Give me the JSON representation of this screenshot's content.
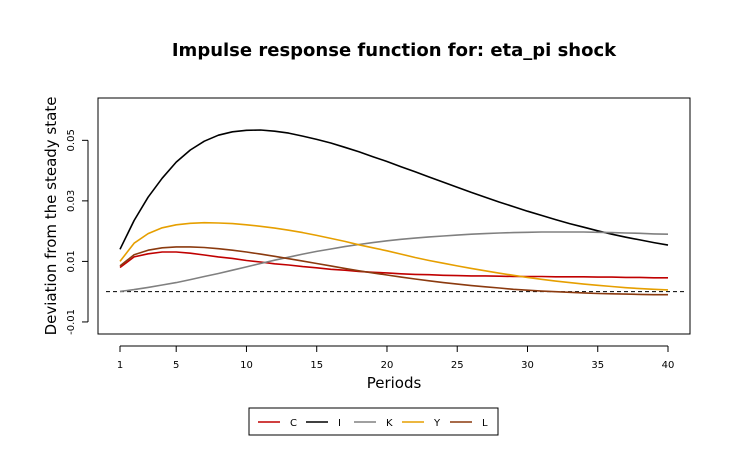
{
  "chart_data": {
    "type": "line",
    "title": "Impulse response function for: eta_pi shock",
    "xlabel": "Periods",
    "ylabel": "Deviation from the steady state",
    "xlim": [
      1,
      40
    ],
    "ylim": [
      -0.012,
      0.062
    ],
    "x_ticks": [
      1,
      5,
      10,
      15,
      20,
      25,
      30,
      35,
      40
    ],
    "y_ticks": [
      -0.01,
      0.01,
      0.03,
      0.05
    ],
    "y_tick_labels": [
      "-0.01",
      "0.01",
      "0.03",
      "0.05"
    ],
    "reference_line": {
      "y": 0,
      "style": "dashed"
    },
    "grid": false,
    "legend_position": "bottom",
    "x": [
      1,
      2,
      3,
      4,
      5,
      6,
      7,
      8,
      9,
      10,
      11,
      12,
      13,
      14,
      15,
      16,
      17,
      18,
      19,
      20,
      21,
      22,
      23,
      24,
      25,
      26,
      27,
      28,
      29,
      30,
      31,
      32,
      33,
      34,
      35,
      36,
      37,
      38,
      39,
      40
    ],
    "series": [
      {
        "name": "C",
        "color": "#C00000",
        "values": [
          0.008,
          0.0115,
          0.0125,
          0.0131,
          0.0131,
          0.0127,
          0.0121,
          0.0115,
          0.011,
          0.0103,
          0.0098,
          0.0092,
          0.0088,
          0.0083,
          0.0079,
          0.0074,
          0.0071,
          0.0067,
          0.0064,
          0.0062,
          0.0059,
          0.0057,
          0.0056,
          0.0054,
          0.0053,
          0.0052,
          0.0052,
          0.0051,
          0.005,
          0.005,
          0.005,
          0.0049,
          0.0049,
          0.0049,
          0.0048,
          0.0048,
          0.0047,
          0.0047,
          0.0046,
          0.0046
        ]
      },
      {
        "name": "I",
        "color": "#000000",
        "values": [
          0.014,
          0.0235,
          0.0312,
          0.0375,
          0.0428,
          0.0468,
          0.0497,
          0.0517,
          0.0528,
          0.0533,
          0.0534,
          0.053,
          0.0524,
          0.0514,
          0.0503,
          0.0491,
          0.0477,
          0.0462,
          0.0446,
          0.043,
          0.0413,
          0.0396,
          0.0379,
          0.0362,
          0.0345,
          0.0328,
          0.0312,
          0.0296,
          0.0281,
          0.0266,
          0.0252,
          0.0238,
          0.0225,
          0.0213,
          0.0201,
          0.019,
          0.018,
          0.0171,
          0.0162,
          0.0154
        ]
      },
      {
        "name": "K",
        "color": "#808080",
        "values": [
          0.0001,
          0.0007,
          0.0014,
          0.0022,
          0.003,
          0.004,
          0.005,
          0.006,
          0.0071,
          0.0082,
          0.0093,
          0.0104,
          0.0114,
          0.0124,
          0.0133,
          0.0141,
          0.0149,
          0.0156,
          0.0162,
          0.0168,
          0.0173,
          0.0177,
          0.0181,
          0.0184,
          0.0187,
          0.019,
          0.0192,
          0.0194,
          0.0195,
          0.0196,
          0.0197,
          0.0197,
          0.0197,
          0.0197,
          0.0196,
          0.0195,
          0.0194,
          0.0193,
          0.0191,
          0.019
        ]
      },
      {
        "name": "Y",
        "color": "#E69F00",
        "values": [
          0.01,
          0.016,
          0.0192,
          0.0211,
          0.0221,
          0.0226,
          0.0228,
          0.0227,
          0.0225,
          0.0221,
          0.0216,
          0.021,
          0.0203,
          0.0195,
          0.0186,
          0.0176,
          0.0166,
          0.0155,
          0.0145,
          0.0135,
          0.0124,
          0.0113,
          0.0103,
          0.0094,
          0.0085,
          0.0077,
          0.0069,
          0.0061,
          0.0054,
          0.0047,
          0.0041,
          0.0035,
          0.003,
          0.0025,
          0.0021,
          0.0017,
          0.0013,
          0.001,
          0.0008,
          0.0006
        ]
      },
      {
        "name": "L",
        "color": "#8B3A0F",
        "values": [
          0.0085,
          0.0122,
          0.0137,
          0.0145,
          0.0148,
          0.0148,
          0.0146,
          0.0142,
          0.0137,
          0.0131,
          0.0124,
          0.0117,
          0.0109,
          0.0101,
          0.0093,
          0.0085,
          0.0077,
          0.0069,
          0.0062,
          0.0055,
          0.0048,
          0.0042,
          0.0036,
          0.003,
          0.0025,
          0.002,
          0.0016,
          0.0012,
          0.0008,
          0.0005,
          0.0002,
          0.0,
          -0.0002,
          -0.0004,
          -0.0006,
          -0.0007,
          -0.0008,
          -0.0009,
          -0.001,
          -0.001
        ]
      }
    ]
  }
}
